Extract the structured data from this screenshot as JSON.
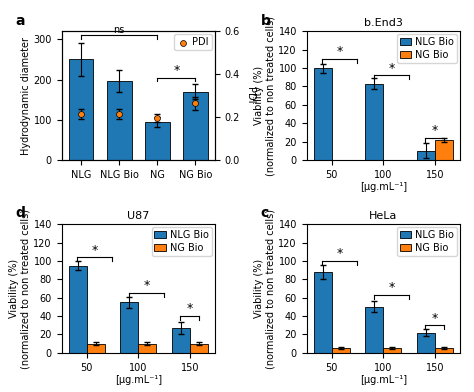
{
  "chart_data": [
    {
      "type": "bar",
      "panel_label": "a",
      "categories": [
        "NLG",
        "NLG Bio",
        "NG",
        "NG Bio"
      ],
      "ylabel": "Hydrodynamic diameter",
      "y2label": "PDI",
      "ylim": [
        0,
        320
      ],
      "yticks": [
        0,
        100,
        200,
        300
      ],
      "y2lim": [
        0.0,
        0.6
      ],
      "y2ticks": [
        0.0,
        0.2,
        0.4,
        0.6
      ],
      "series": [
        {
          "type": "bar",
          "color": "#1f77b4",
          "values": [
            250,
            197,
            95,
            170
          ],
          "errors": [
            40,
            28,
            12,
            18
          ]
        },
        {
          "name": "PDI",
          "type": "scatter",
          "axis": "y2",
          "color": "#ff7f0e",
          "values": [
            0.215,
            0.215,
            0.195,
            0.265
          ],
          "errors": [
            0.025,
            0.025,
            0.02,
            0.03
          ]
        }
      ],
      "annotations": [
        {
          "text": "ns",
          "x1": 0,
          "x2": 2,
          "y": 310
        },
        {
          "text": "*",
          "x1": 2,
          "x2": 3,
          "y": 205
        }
      ],
      "legend": "upper right"
    },
    {
      "type": "bar",
      "panel_label": "b",
      "title": "b.End3",
      "categories": [
        "50",
        "100",
        "150"
      ],
      "xlabel": "[µg.mL⁻¹]",
      "ylabel": "Viability (%)\n(normalized to non treated cells)",
      "ylim": [
        0,
        140
      ],
      "yticks": [
        0,
        20,
        40,
        60,
        80,
        100,
        120,
        140
      ],
      "series": [
        {
          "name": "NLG Bio",
          "color": "#1f77b4",
          "values": [
            100,
            83,
            10
          ],
          "errors": [
            5,
            6,
            8
          ]
        },
        {
          "name": "NG Bio",
          "color": "#ff7f0e",
          "values": [
            null,
            null,
            22
          ],
          "errors": [
            null,
            null,
            2
          ]
        }
      ],
      "annotations": [
        {
          "text": "*",
          "x1": -0.18,
          "x2": 0.5,
          "y": 110
        },
        {
          "text": "*",
          "x1": 0.82,
          "x2": 1.5,
          "y": 92
        },
        {
          "text": "*",
          "x1": 1.82,
          "x2": 2.18,
          "y": 24
        }
      ],
      "legend": "upper right"
    },
    {
      "type": "bar",
      "panel_label": "d",
      "title": "U87",
      "categories": [
        "50",
        "100",
        "150"
      ],
      "xlabel": "[µg.mL⁻¹]",
      "ylabel": "Viability (%)\n(normalized to non treated cells)",
      "ylim": [
        0,
        140
      ],
      "yticks": [
        0,
        20,
        40,
        60,
        80,
        100,
        120,
        140
      ],
      "series": [
        {
          "name": "NLG Bio",
          "color": "#1f77b4",
          "values": [
            95,
            55,
            27
          ],
          "errors": [
            5,
            6,
            7
          ]
        },
        {
          "name": "NG Bio",
          "color": "#ff7f0e",
          "values": [
            10,
            10,
            10
          ],
          "errors": [
            2,
            2,
            2
          ]
        }
      ],
      "annotations": [
        {
          "text": "*",
          "x1": -0.18,
          "x2": 0.5,
          "y": 104
        },
        {
          "text": "*",
          "x1": 0.82,
          "x2": 1.5,
          "y": 65
        },
        {
          "text": "*",
          "x1": 1.82,
          "x2": 2.18,
          "y": 40
        }
      ],
      "legend": "upper right"
    },
    {
      "type": "bar",
      "panel_label": "c",
      "title": "HeLa",
      "categories": [
        "50",
        "100",
        "150"
      ],
      "xlabel": "[µg.mL⁻¹]",
      "ylabel": "Viability (%)\n(normalized to non treated cells)",
      "ylim": [
        0,
        140
      ],
      "yticks": [
        0,
        20,
        40,
        60,
        80,
        100,
        120,
        140
      ],
      "series": [
        {
          "name": "NLG Bio",
          "color": "#1f77b4",
          "values": [
            88,
            50,
            22
          ],
          "errors": [
            8,
            6,
            4
          ]
        },
        {
          "name": "NG Bio",
          "color": "#ff7f0e",
          "values": [
            5,
            5,
            5
          ],
          "errors": [
            1,
            1,
            1
          ]
        }
      ],
      "annotations": [
        {
          "text": "*",
          "x1": -0.18,
          "x2": 0.5,
          "y": 100
        },
        {
          "text": "*",
          "x1": 0.82,
          "x2": 1.5,
          "y": 63
        },
        {
          "text": "*",
          "x1": 1.82,
          "x2": 2.18,
          "y": 30
        }
      ],
      "legend": "upper right"
    }
  ]
}
